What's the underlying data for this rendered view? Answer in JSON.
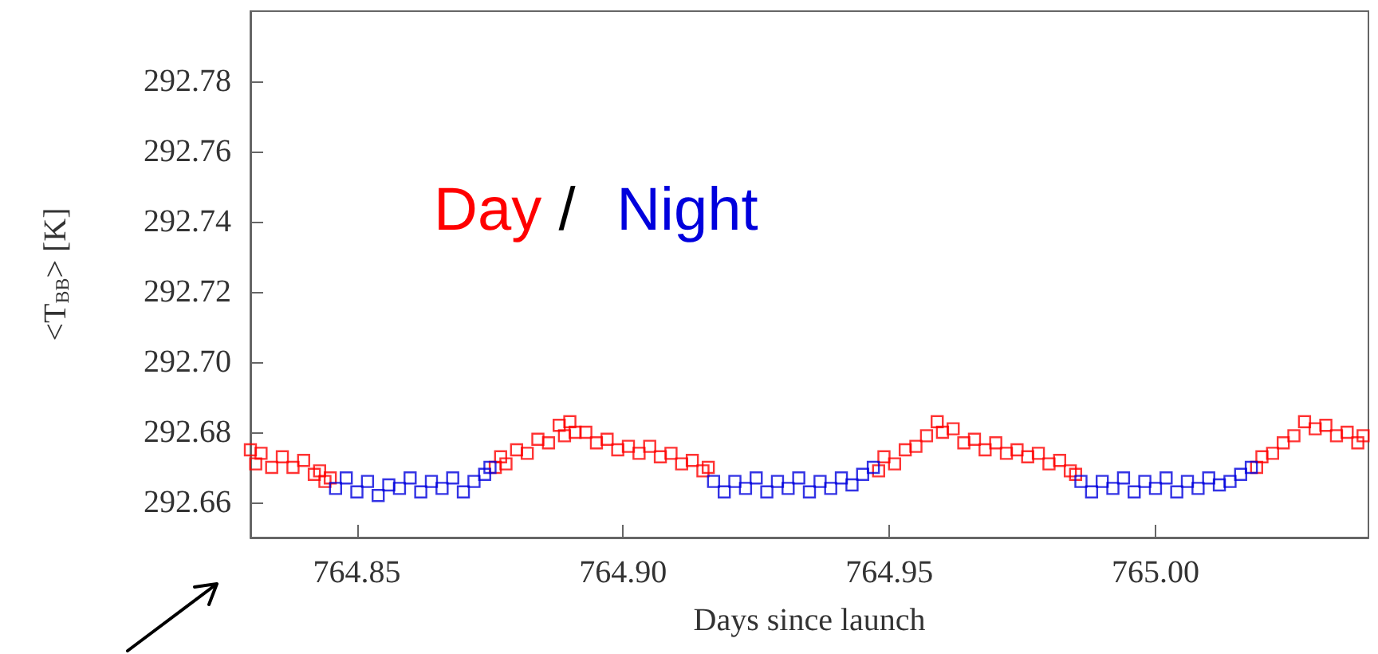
{
  "chart_data": {
    "type": "scatter",
    "xlabel": "Days since launch",
    "ylabel": "<T$_{BB}$> [K]",
    "xlim": [
      764.83,
      765.04
    ],
    "ylim": [
      292.65,
      292.8
    ],
    "xticks": [
      {
        "value": 764.85,
        "label": "764.85"
      },
      {
        "value": 764.9,
        "label": "764.90"
      },
      {
        "value": 764.95,
        "label": "764.95"
      },
      {
        "value": 765.0,
        "label": "765.00"
      }
    ],
    "yticks": [
      {
        "value": 292.66,
        "label": "292.66"
      },
      {
        "value": 292.68,
        "label": "292.68"
      },
      {
        "value": 292.7,
        "label": "292.70"
      },
      {
        "value": 292.72,
        "label": "292.72"
      },
      {
        "value": 292.74,
        "label": "292.74"
      },
      {
        "value": 292.76,
        "label": "292.76"
      },
      {
        "value": 292.78,
        "label": "292.78"
      }
    ],
    "grid": false,
    "legend": "top left",
    "marker": "square",
    "annotations": [
      "/"
    ],
    "series": [
      {
        "name": "Day",
        "color": "#ff0000",
        "x": [
          764.83,
          764.831,
          764.832,
          764.834,
          764.836,
          764.838,
          764.84,
          764.842,
          764.843,
          764.844,
          764.845,
          764.876,
          764.877,
          764.878,
          764.88,
          764.882,
          764.884,
          764.886,
          764.888,
          764.889,
          764.89,
          764.891,
          764.893,
          764.895,
          764.897,
          764.899,
          764.901,
          764.903,
          764.905,
          764.907,
          764.909,
          764.911,
          764.913,
          764.915,
          764.916,
          764.948,
          764.949,
          764.951,
          764.953,
          764.955,
          764.957,
          764.959,
          764.96,
          764.962,
          764.964,
          764.966,
          764.968,
          764.97,
          764.972,
          764.974,
          764.976,
          764.978,
          764.98,
          764.982,
          764.984,
          764.985,
          765.019,
          765.02,
          765.022,
          765.024,
          765.026,
          765.028,
          765.03,
          765.032,
          765.034,
          765.036,
          765.038,
          765.039
        ],
        "values": [
          292.675,
          292.671,
          292.674,
          292.67,
          292.673,
          292.67,
          292.672,
          292.668,
          292.669,
          292.666,
          292.667,
          292.67,
          292.673,
          292.671,
          292.675,
          292.674,
          292.678,
          292.677,
          292.682,
          292.679,
          292.683,
          292.68,
          292.68,
          292.677,
          292.678,
          292.675,
          292.676,
          292.674,
          292.676,
          292.673,
          292.674,
          292.671,
          292.672,
          292.669,
          292.67,
          292.669,
          292.673,
          292.671,
          292.675,
          292.676,
          292.679,
          292.683,
          292.68,
          292.681,
          292.677,
          292.678,
          292.675,
          292.677,
          292.674,
          292.675,
          292.673,
          292.674,
          292.671,
          292.672,
          292.669,
          292.668,
          292.67,
          292.673,
          292.674,
          292.677,
          292.679,
          292.683,
          292.681,
          292.682,
          292.679,
          292.68,
          292.677,
          292.679
        ]
      },
      {
        "name": "Night",
        "color": "#0000dd",
        "x": [
          764.846,
          764.848,
          764.85,
          764.852,
          764.854,
          764.856,
          764.858,
          764.86,
          764.862,
          764.864,
          764.866,
          764.868,
          764.87,
          764.872,
          764.874,
          764.875,
          764.917,
          764.919,
          764.921,
          764.923,
          764.925,
          764.927,
          764.929,
          764.931,
          764.933,
          764.935,
          764.937,
          764.939,
          764.941,
          764.943,
          764.945,
          764.947,
          764.986,
          764.988,
          764.99,
          764.992,
          764.994,
          764.996,
          764.998,
          765.0,
          765.002,
          765.004,
          765.006,
          765.008,
          765.01,
          765.012,
          765.014,
          765.016,
          765.018
        ],
        "values": [
          292.664,
          292.667,
          292.663,
          292.666,
          292.662,
          292.665,
          292.664,
          292.667,
          292.663,
          292.666,
          292.664,
          292.667,
          292.663,
          292.666,
          292.668,
          292.67,
          292.666,
          292.663,
          292.666,
          292.664,
          292.667,
          292.663,
          292.666,
          292.664,
          292.667,
          292.663,
          292.666,
          292.664,
          292.667,
          292.665,
          292.668,
          292.67,
          292.666,
          292.663,
          292.666,
          292.664,
          292.667,
          292.663,
          292.666,
          292.664,
          292.667,
          292.663,
          292.666,
          292.664,
          292.667,
          292.665,
          292.666,
          292.668,
          292.67
        ]
      }
    ]
  }
}
